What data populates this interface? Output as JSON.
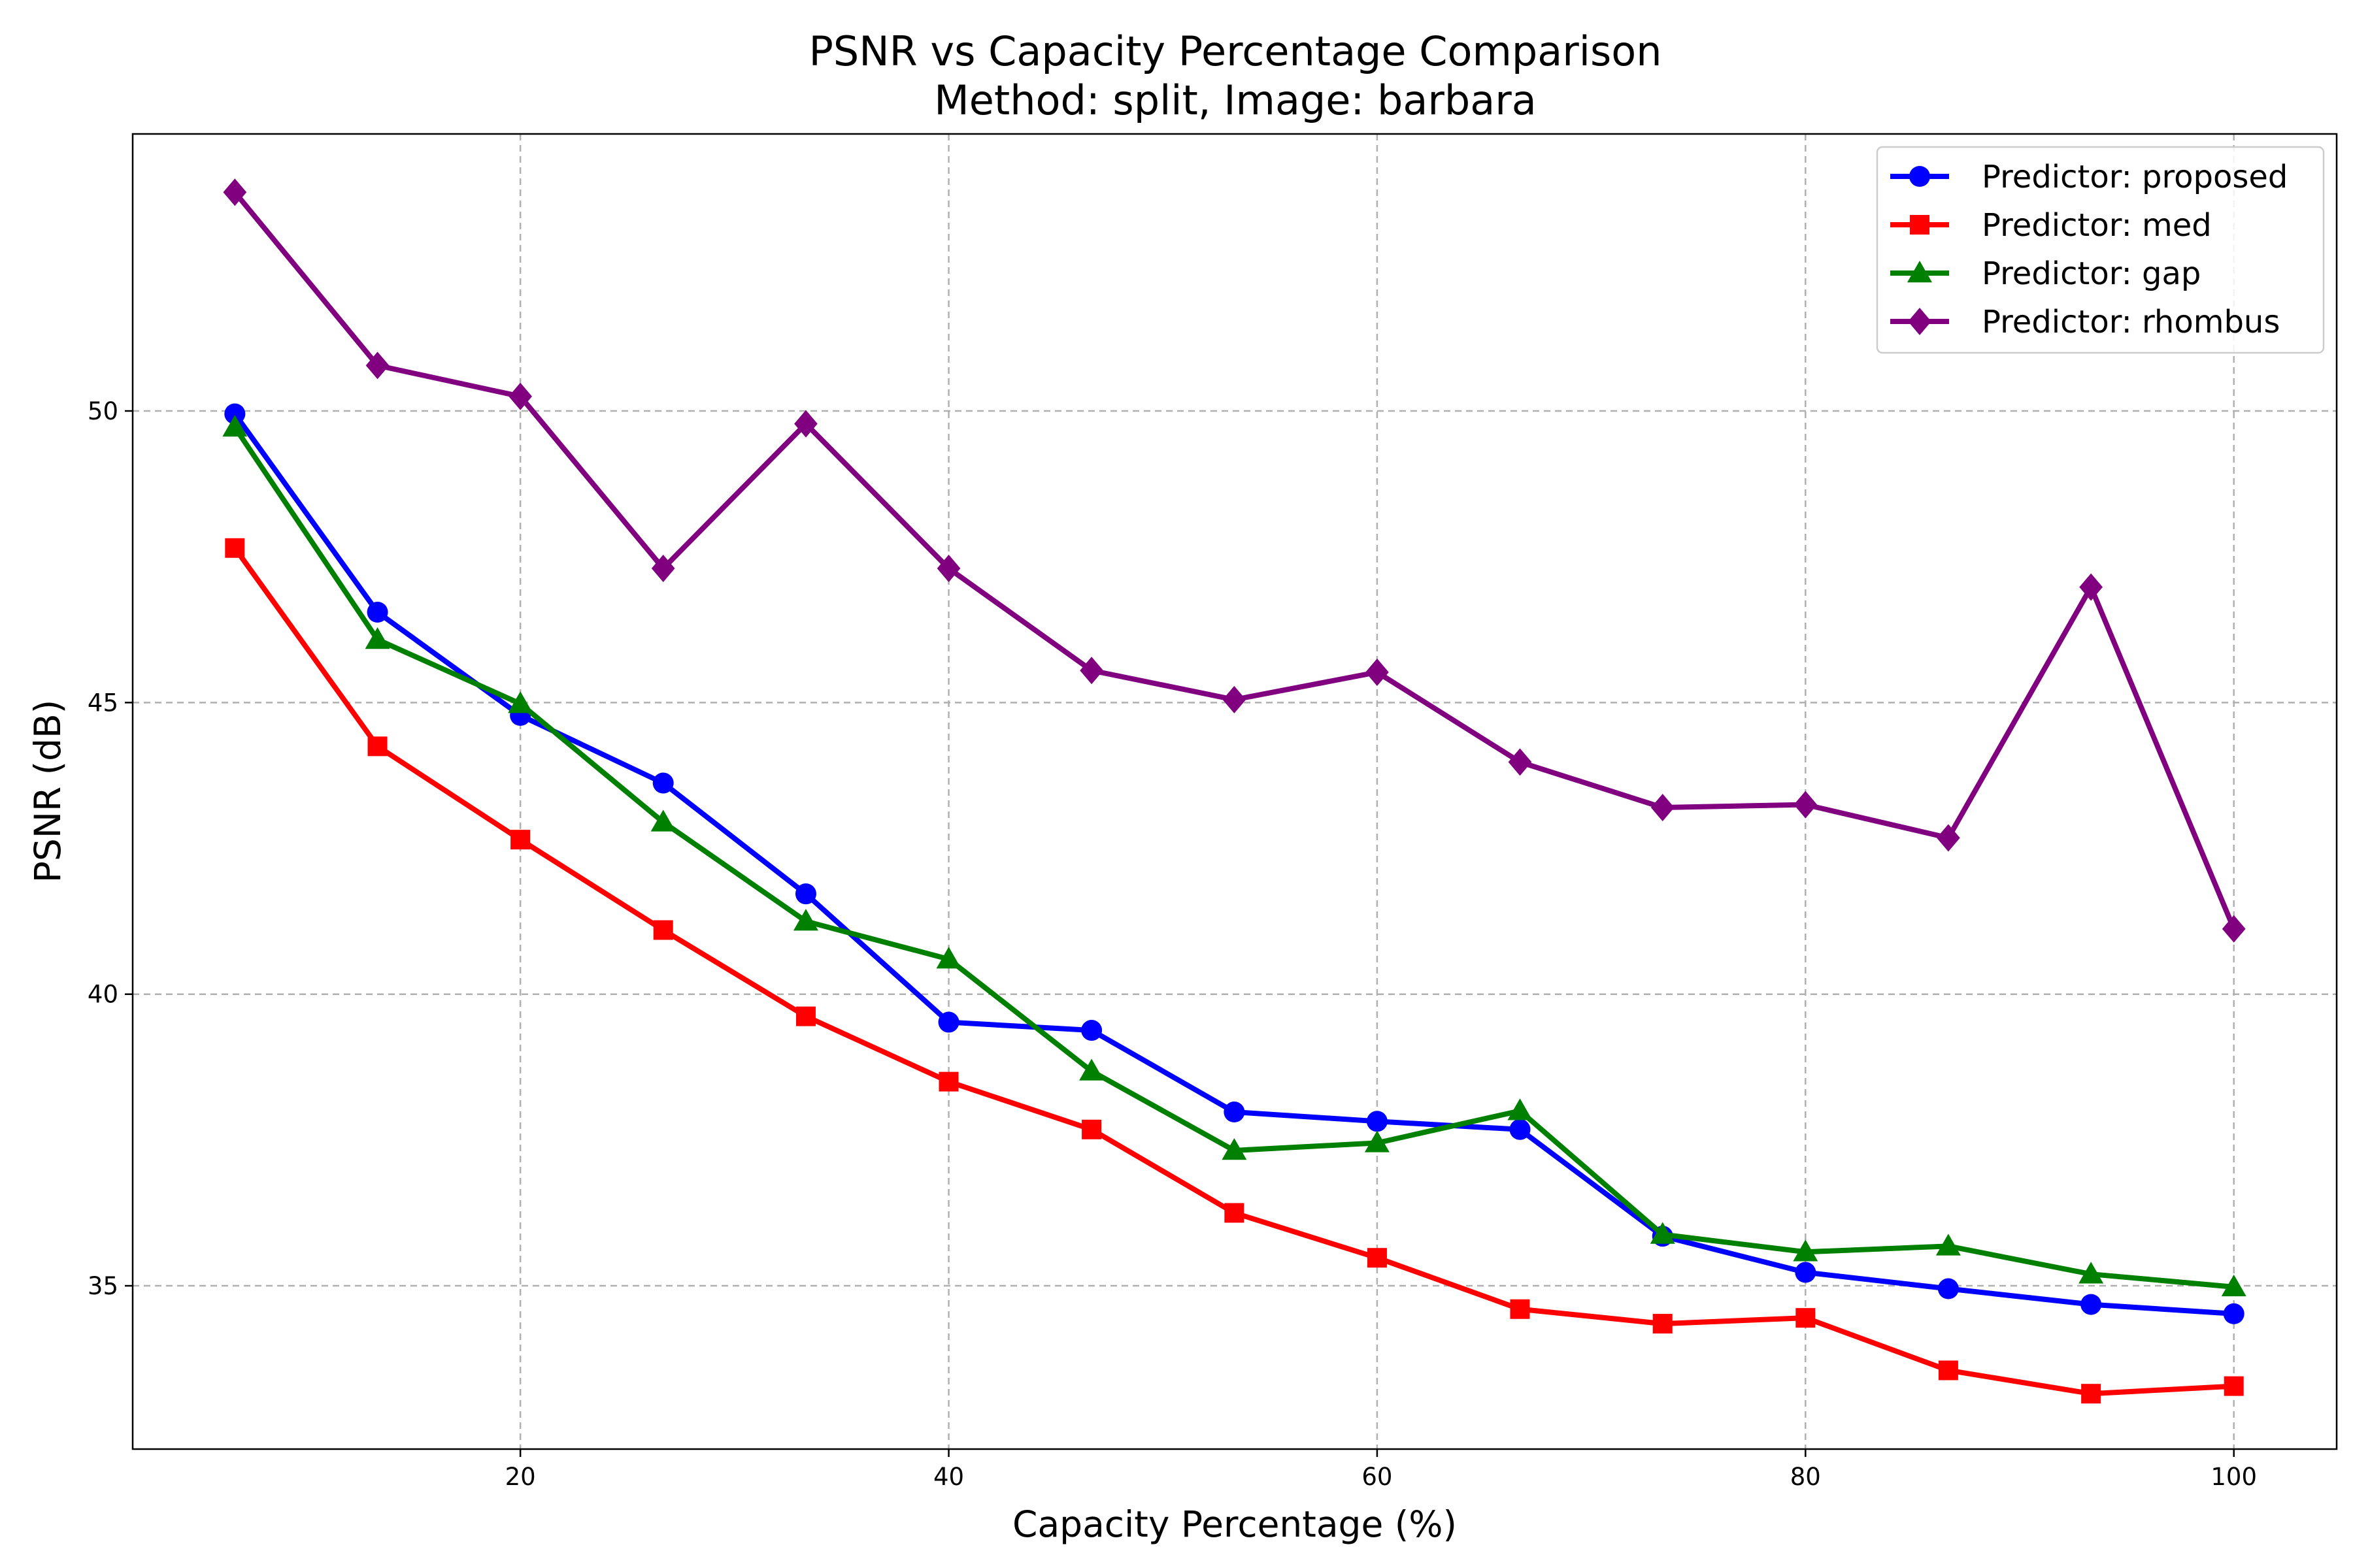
{
  "chart_data": {
    "type": "line",
    "title": "PSNR vs Capacity Percentage Comparison",
    "subtitle": "Method: split, Image: barbara",
    "xlabel": "Capacity Percentage (%)",
    "ylabel": "PSNR (dB)",
    "xlim": [
      1.9,
      104.8
    ],
    "ylim": [
      32.2,
      54.75
    ],
    "xticks": [
      20,
      40,
      60,
      80,
      100
    ],
    "yticks": [
      35,
      40,
      45,
      50
    ],
    "grid": true,
    "legend_position": "top-right",
    "x": [
      6.67,
      13.33,
      20,
      26.67,
      33.33,
      40,
      46.67,
      53.33,
      60,
      66.67,
      73.33,
      80,
      86.67,
      93.33,
      100
    ],
    "series": [
      {
        "name": "Predictor: proposed",
        "color": "#0000ff",
        "marker": "circle",
        "values": [
          49.95,
          46.55,
          44.78,
          43.62,
          41.72,
          39.52,
          39.38,
          37.98,
          37.82,
          37.68,
          35.85,
          35.23,
          34.95,
          34.68,
          34.52
        ]
      },
      {
        "name": "Predictor: med",
        "color": "#ff0000",
        "marker": "square",
        "values": [
          47.65,
          44.25,
          42.65,
          41.1,
          39.62,
          38.5,
          37.68,
          36.25,
          35.48,
          34.6,
          34.35,
          34.45,
          33.55,
          33.15,
          33.28
        ]
      },
      {
        "name": "Predictor: gap",
        "color": "#008000",
        "marker": "triangle",
        "values": [
          49.72,
          46.08,
          44.98,
          42.95,
          41.25,
          40.6,
          38.68,
          37.32,
          37.45,
          38.0,
          35.88,
          35.58,
          35.68,
          35.2,
          34.98
        ]
      },
      {
        "name": "Predictor: rhombus",
        "color": "#800080",
        "marker": "diamond",
        "values": [
          53.75,
          50.78,
          50.25,
          47.3,
          49.78,
          47.3,
          45.55,
          45.05,
          45.52,
          43.98,
          43.2,
          43.25,
          42.68,
          46.98,
          41.12
        ]
      }
    ]
  }
}
